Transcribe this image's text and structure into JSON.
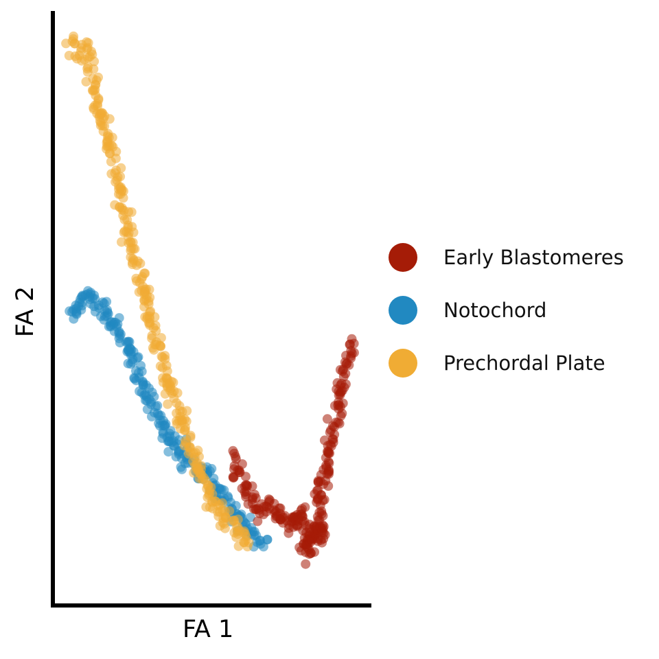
{
  "chart_data": {
    "type": "scatter",
    "xlabel": "FA 1",
    "ylabel": "FA 2",
    "xlim": [
      0,
      100
    ],
    "ylim": [
      0,
      100
    ],
    "x_ticks": [],
    "y_ticks": [],
    "grid": false,
    "legend_position": "right",
    "point_alpha": 0.55,
    "series": [
      {
        "name": "Early Blastomeres",
        "color": "#A51C07",
        "trajectory": [
          [
            58,
            25
          ],
          [
            61,
            21
          ],
          [
            64,
            18
          ],
          [
            67,
            16
          ],
          [
            70,
            15.5
          ],
          [
            72,
            15
          ],
          [
            73,
            14.5
          ],
          [
            74,
            14
          ],
          [
            76,
            13
          ],
          [
            78,
            14.5
          ],
          [
            80,
            16
          ],
          [
            81,
            12
          ],
          [
            82,
            8.5
          ],
          [
            83,
            12
          ],
          [
            84,
            10
          ],
          [
            85,
            14
          ],
          [
            86,
            11
          ],
          [
            87,
            12
          ],
          [
            86,
            16
          ],
          [
            86.5,
            20
          ],
          [
            88,
            22
          ],
          [
            89,
            26
          ],
          [
            90,
            28
          ],
          [
            91,
            31
          ],
          [
            92,
            33
          ],
          [
            93,
            36
          ],
          [
            94,
            39
          ],
          [
            95,
            41
          ],
          [
            96,
            43
          ],
          [
            97,
            44
          ]
        ]
      },
      {
        "name": "Notochord",
        "color": "#2189C1",
        "trajectory": [
          [
            5,
            49
          ],
          [
            6,
            50
          ],
          [
            8,
            51
          ],
          [
            10,
            51.5
          ],
          [
            11,
            52
          ],
          [
            12,
            51.5
          ],
          [
            14,
            51
          ],
          [
            16,
            50
          ],
          [
            18,
            48.5
          ],
          [
            20,
            47
          ],
          [
            22,
            45
          ],
          [
            24,
            42.5
          ],
          [
            26,
            40
          ],
          [
            28,
            38
          ],
          [
            30,
            35.5
          ],
          [
            32,
            33
          ],
          [
            34,
            31
          ],
          [
            36,
            29.5
          ],
          [
            38,
            28
          ],
          [
            40,
            26.5
          ],
          [
            42,
            25
          ],
          [
            44,
            24
          ],
          [
            46,
            23
          ],
          [
            48,
            22
          ],
          [
            50,
            21.5
          ],
          [
            52,
            20
          ],
          [
            54,
            18.5
          ],
          [
            56,
            17
          ],
          [
            58,
            15.5
          ],
          [
            60,
            14.5
          ],
          [
            62,
            13.5
          ],
          [
            64,
            12
          ],
          [
            66,
            11.5
          ],
          [
            68,
            11
          ]
        ]
      },
      {
        "name": "Prechordal Plate",
        "color": "#F0AC34",
        "trajectory": [
          [
            5,
            95
          ],
          [
            6,
            94.5
          ],
          [
            8,
            94
          ],
          [
            10,
            94
          ],
          [
            11,
            93
          ],
          [
            12,
            90
          ],
          [
            13,
            87
          ],
          [
            15,
            83
          ],
          [
            17,
            79
          ],
          [
            19,
            74
          ],
          [
            21,
            70
          ],
          [
            23,
            65
          ],
          [
            25,
            61
          ],
          [
            27,
            57
          ],
          [
            29,
            53
          ],
          [
            31,
            48.5
          ],
          [
            33,
            44
          ],
          [
            35,
            40
          ],
          [
            37,
            37
          ],
          [
            39,
            34
          ],
          [
            41,
            31
          ],
          [
            43,
            28
          ],
          [
            45,
            25
          ],
          [
            47,
            22.5
          ],
          [
            49,
            20.5
          ],
          [
            51,
            18
          ],
          [
            53,
            16.5
          ],
          [
            55,
            15
          ],
          [
            57,
            14
          ],
          [
            59,
            12.5
          ],
          [
            61,
            11.5
          ],
          [
            63,
            11
          ]
        ]
      }
    ]
  }
}
